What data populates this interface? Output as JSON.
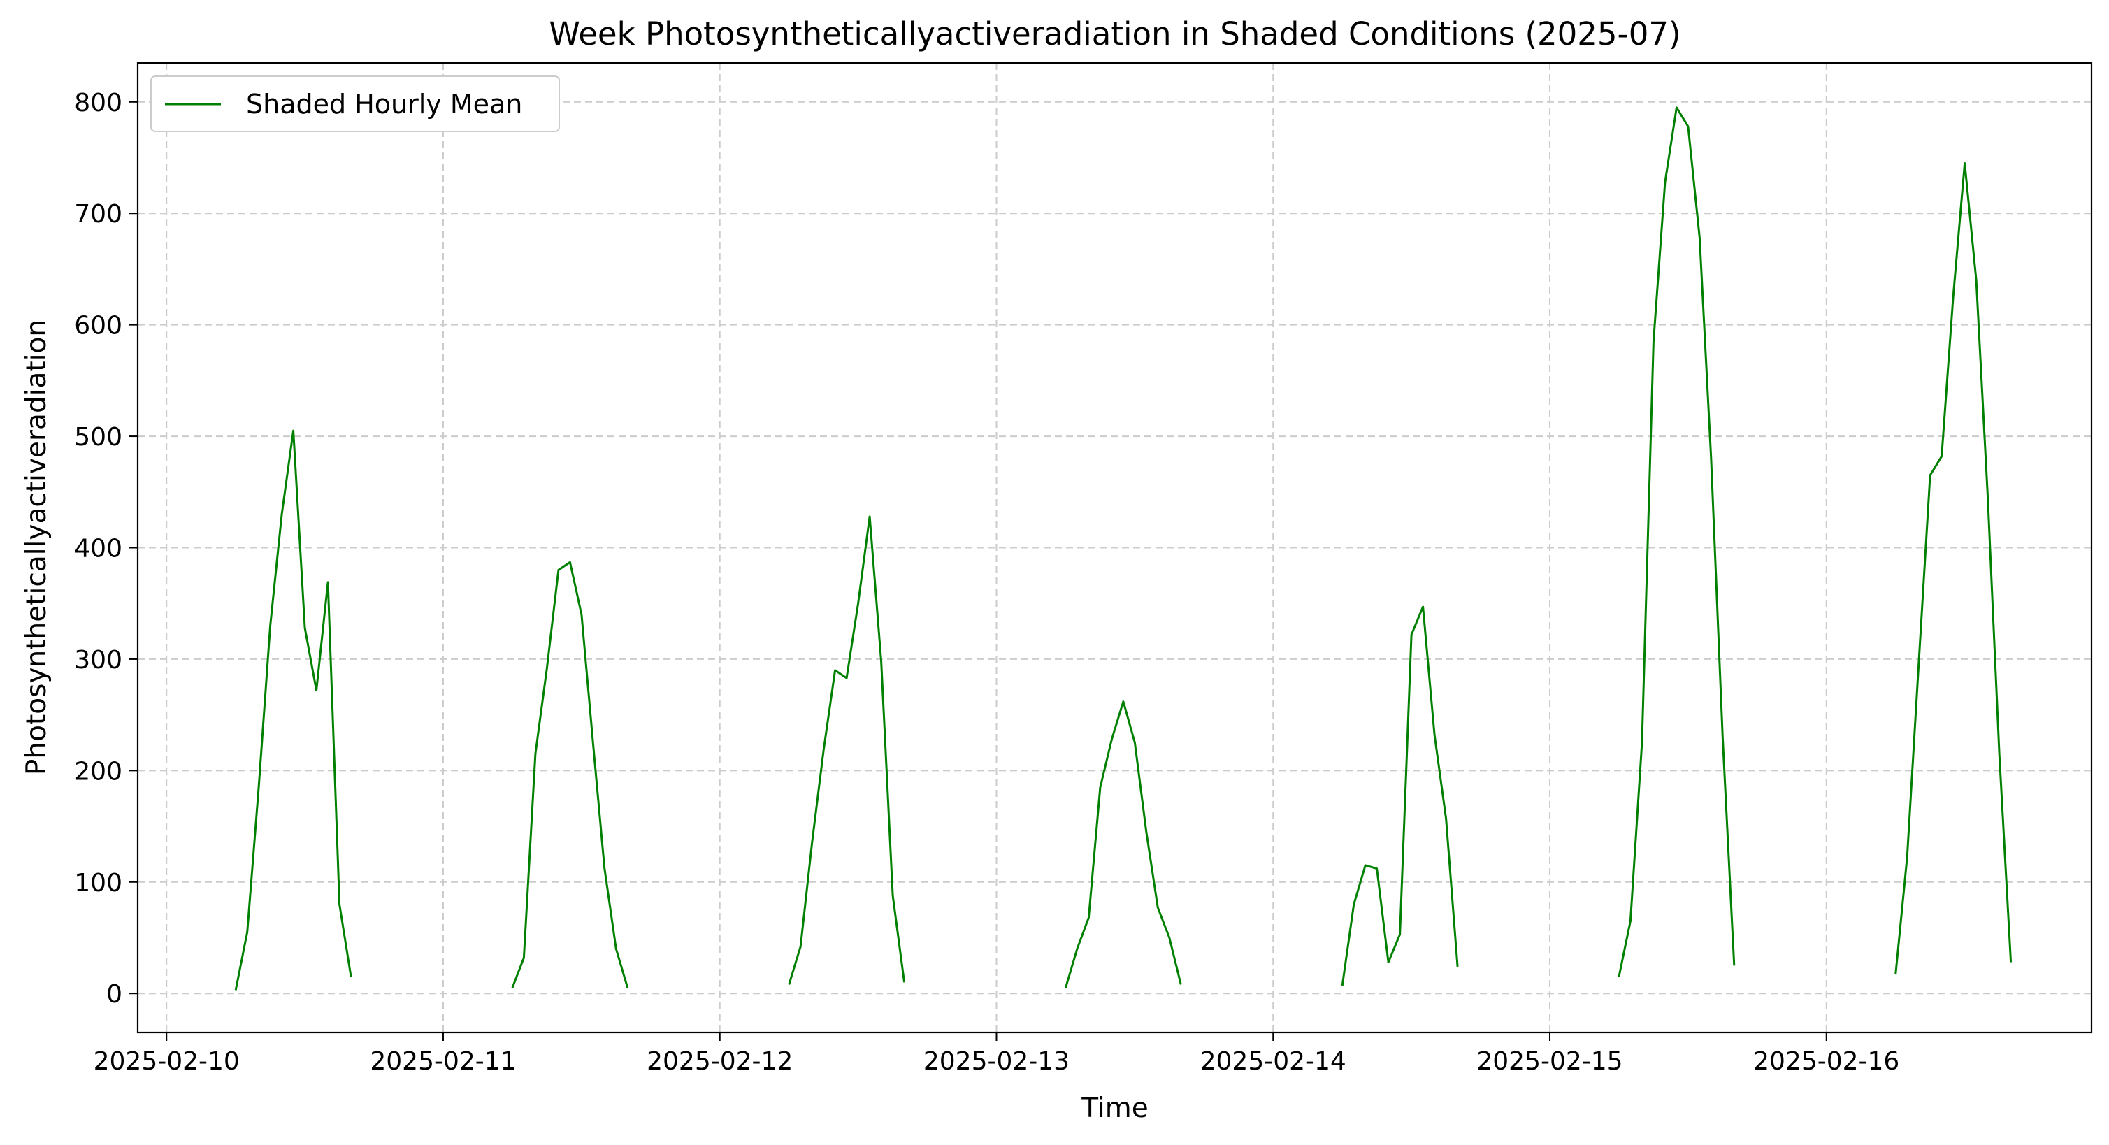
{
  "chart_data": {
    "type": "line",
    "title": "Week Photosyntheticallyactiveradiation in Shaded Conditions (2025-07)",
    "xlabel": "Time",
    "ylabel": "Photosyntheticallyactiveradiation",
    "x_ticks": [
      "2025-02-10",
      "2025-02-11",
      "2025-02-12",
      "2025-02-13",
      "2025-02-14",
      "2025-02-15",
      "2025-02-16"
    ],
    "y_ticks": [
      "0",
      "100",
      "200",
      "300",
      "400",
      "500",
      "600",
      "700",
      "800"
    ],
    "xlim": [
      "2025-02-09T21:30",
      "2025-02-16T23:00"
    ],
    "ylim": [
      -35,
      835
    ],
    "grid": true,
    "legend_position": "upper left",
    "series": [
      {
        "name": "Shaded Hourly Mean",
        "color": "#008000",
        "segments": [
          {
            "x": [
              "2025-02-10T06:00",
              "2025-02-10T07:00",
              "2025-02-10T08:00",
              "2025-02-10T09:00",
              "2025-02-10T10:00",
              "2025-02-10T11:00",
              "2025-02-10T12:00",
              "2025-02-10T13:00",
              "2025-02-10T14:00",
              "2025-02-10T15:00",
              "2025-02-10T16:00"
            ],
            "y": [
              3,
              55,
              185,
              330,
              430,
              505,
              328,
              272,
              369,
              80,
              15
            ]
          },
          {
            "x": [
              "2025-02-11T06:00",
              "2025-02-11T07:00",
              "2025-02-11T08:00",
              "2025-02-11T09:00",
              "2025-02-11T10:00",
              "2025-02-11T11:00",
              "2025-02-11T12:00",
              "2025-02-11T13:00",
              "2025-02-11T14:00",
              "2025-02-11T15:00",
              "2025-02-11T16:00"
            ],
            "y": [
              5,
              32,
              215,
              292,
              380,
              387,
              340,
              225,
              112,
              40,
              5
            ]
          },
          {
            "x": [
              "2025-02-12T06:00",
              "2025-02-12T07:00",
              "2025-02-12T08:00",
              "2025-02-12T09:00",
              "2025-02-12T10:00",
              "2025-02-12T11:00",
              "2025-02-12T12:00",
              "2025-02-12T13:00",
              "2025-02-12T14:00",
              "2025-02-12T15:00",
              "2025-02-12T16:00"
            ],
            "y": [
              8,
              42,
              135,
              218,
              290,
              283,
              350,
              428,
              298,
              88,
              10
            ]
          },
          {
            "x": [
              "2025-02-13T06:00",
              "2025-02-13T07:00",
              "2025-02-13T08:00",
              "2025-02-13T09:00",
              "2025-02-13T10:00",
              "2025-02-13T11:00",
              "2025-02-13T12:00",
              "2025-02-13T13:00",
              "2025-02-13T14:00",
              "2025-02-13T15:00",
              "2025-02-13T16:00"
            ],
            "y": [
              5,
              40,
              68,
              185,
              228,
              262,
              225,
              145,
              77,
              50,
              8
            ]
          },
          {
            "x": [
              "2025-02-14T06:00",
              "2025-02-14T07:00",
              "2025-02-14T08:00",
              "2025-02-14T09:00",
              "2025-02-14T10:00",
              "2025-02-14T11:00",
              "2025-02-14T12:00",
              "2025-02-14T13:00",
              "2025-02-14T14:00",
              "2025-02-14T15:00",
              "2025-02-14T16:00"
            ],
            "y": [
              7,
              80,
              115,
              112,
              28,
              53,
              322,
              347,
              232,
              157,
              24
            ]
          },
          {
            "x": [
              "2025-02-15T06:00",
              "2025-02-15T07:00",
              "2025-02-15T08:00",
              "2025-02-15T09:00",
              "2025-02-15T10:00",
              "2025-02-15T11:00",
              "2025-02-15T12:00",
              "2025-02-15T13:00",
              "2025-02-15T14:00",
              "2025-02-15T15:00",
              "2025-02-15T16:00"
            ],
            "y": [
              15,
              65,
              225,
              585,
              728,
              795,
              778,
              678,
              480,
              230,
              25
            ]
          },
          {
            "x": [
              "2025-02-16T06:00",
              "2025-02-16T07:00",
              "2025-02-16T08:00",
              "2025-02-16T09:00",
              "2025-02-16T10:00",
              "2025-02-16T11:00",
              "2025-02-16T12:00",
              "2025-02-16T13:00",
              "2025-02-16T14:00",
              "2025-02-16T15:00",
              "2025-02-16T16:00"
            ],
            "y": [
              17,
              122,
              295,
              465,
              482,
              625,
              745,
              640,
              445,
              215,
              28
            ]
          }
        ]
      }
    ]
  }
}
